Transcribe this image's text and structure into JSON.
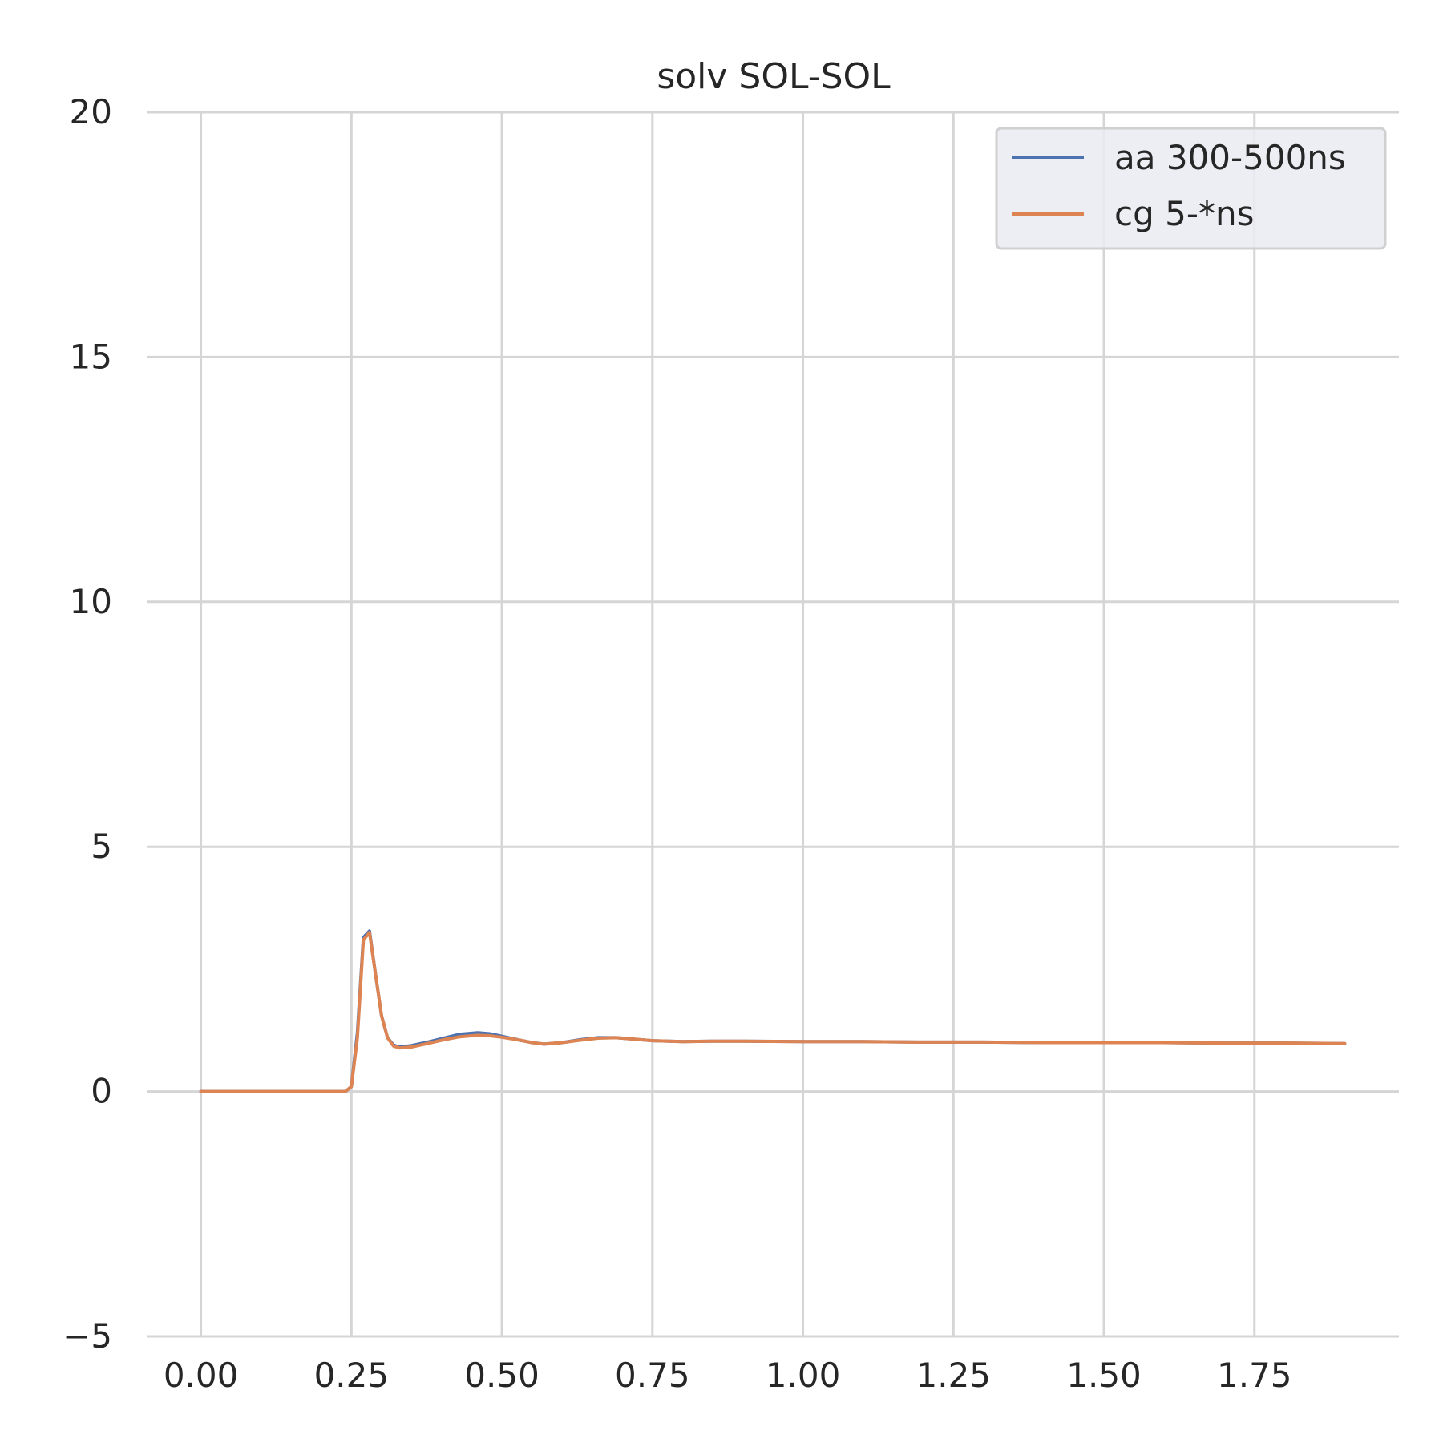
{
  "chart_data": {
    "type": "line",
    "title": "solv SOL-SOL",
    "xlabel": "",
    "ylabel": "",
    "xlim": [
      -0.09,
      1.99
    ],
    "ylim": [
      -5,
      20
    ],
    "xticks": [
      "0.00",
      "0.25",
      "0.50",
      "0.75",
      "1.00",
      "1.25",
      "1.50",
      "1.75"
    ],
    "xtick_values": [
      0,
      0.25,
      0.5,
      0.75,
      1.0,
      1.25,
      1.5,
      1.75
    ],
    "yticks": [
      "−5",
      "0",
      "5",
      "10",
      "15",
      "20"
    ],
    "ytick_values": [
      -5,
      0,
      5,
      10,
      15,
      20
    ],
    "grid": true,
    "legend_position": "top-right",
    "series": [
      {
        "name": "aa 300-500ns",
        "color": "#4c72b0",
        "x": [
          0.0,
          0.05,
          0.1,
          0.15,
          0.2,
          0.24,
          0.25,
          0.26,
          0.27,
          0.28,
          0.29,
          0.3,
          0.31,
          0.32,
          0.33,
          0.35,
          0.38,
          0.4,
          0.43,
          0.46,
          0.48,
          0.5,
          0.53,
          0.55,
          0.57,
          0.6,
          0.63,
          0.66,
          0.69,
          0.72,
          0.75,
          0.8,
          0.85,
          0.9,
          1.0,
          1.1,
          1.2,
          1.3,
          1.4,
          1.5,
          1.6,
          1.7,
          1.8,
          1.9
        ],
        "y": [
          0,
          0,
          0,
          0,
          0,
          0,
          0.1,
          1.2,
          3.15,
          3.28,
          2.4,
          1.55,
          1.1,
          0.95,
          0.91,
          0.94,
          1.02,
          1.08,
          1.17,
          1.2,
          1.18,
          1.13,
          1.05,
          1.0,
          0.97,
          1.0,
          1.06,
          1.1,
          1.1,
          1.07,
          1.04,
          1.02,
          1.03,
          1.03,
          1.02,
          1.02,
          1.01,
          1.01,
          1.0,
          1.0,
          1.0,
          0.99,
          0.99,
          0.98
        ]
      },
      {
        "name": "cg 5-*ns",
        "color": "#dd8452",
        "x": [
          0.0,
          0.05,
          0.1,
          0.15,
          0.2,
          0.24,
          0.25,
          0.26,
          0.27,
          0.28,
          0.29,
          0.3,
          0.31,
          0.32,
          0.33,
          0.35,
          0.38,
          0.4,
          0.43,
          0.46,
          0.48,
          0.5,
          0.53,
          0.55,
          0.57,
          0.6,
          0.63,
          0.66,
          0.69,
          0.72,
          0.75,
          0.8,
          0.85,
          0.9,
          1.0,
          1.1,
          1.2,
          1.3,
          1.4,
          1.5,
          1.6,
          1.7,
          1.8,
          1.9
        ],
        "y": [
          0,
          0,
          0,
          0,
          0,
          0,
          0.1,
          1.1,
          3.1,
          3.25,
          2.4,
          1.55,
          1.1,
          0.93,
          0.89,
          0.91,
          0.99,
          1.05,
          1.12,
          1.15,
          1.14,
          1.11,
          1.05,
          1.0,
          0.97,
          1.0,
          1.05,
          1.09,
          1.1,
          1.07,
          1.04,
          1.02,
          1.03,
          1.03,
          1.02,
          1.02,
          1.01,
          1.01,
          1.0,
          1.0,
          1.0,
          0.99,
          0.99,
          0.98
        ]
      }
    ]
  }
}
